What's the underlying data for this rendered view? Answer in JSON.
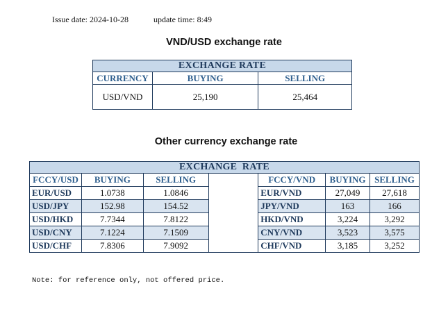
{
  "meta": {
    "issue_date": "Issue date: 2024-10-28",
    "update_time": "update time: 8:49"
  },
  "usd_section": {
    "title": "VND/USD exchange rate",
    "banner": "EXCHANGE RATE",
    "headers": [
      "CURRENCY",
      "BUYING",
      "SELLING"
    ],
    "row": [
      "USD/VND",
      "25,190",
      "25,464"
    ]
  },
  "other_section": {
    "title": "Other currency exchange rate",
    "banner": "EXCHANGE  RATE",
    "left_headers": [
      "FCCY/USD",
      "BUYING",
      "SELLING"
    ],
    "right_headers": [
      "FCCY/VND",
      "BUYING",
      "SELLING"
    ],
    "left_rows": [
      [
        "EUR/USD",
        "1.0738",
        "1.0846"
      ],
      [
        "USD/JPY",
        "152.98",
        "154.52"
      ],
      [
        "USD/HKD",
        "7.7344",
        "7.8122"
      ],
      [
        "USD/CNY",
        "7.1224",
        "7.1509"
      ],
      [
        "USD/CHF",
        "7.8306",
        "7.9092"
      ]
    ],
    "right_rows": [
      [
        "EUR/VND",
        "27,049",
        "27,618"
      ],
      [
        "JPY/VND",
        "163",
        "166"
      ],
      [
        "HKD/VND",
        "3,224",
        "3,292"
      ],
      [
        "CNY/VND",
        "3,523",
        "3,575"
      ],
      [
        "CHF/VND",
        "3,185",
        "3,252"
      ]
    ]
  },
  "note": "Note: for reference only, not offered price."
}
